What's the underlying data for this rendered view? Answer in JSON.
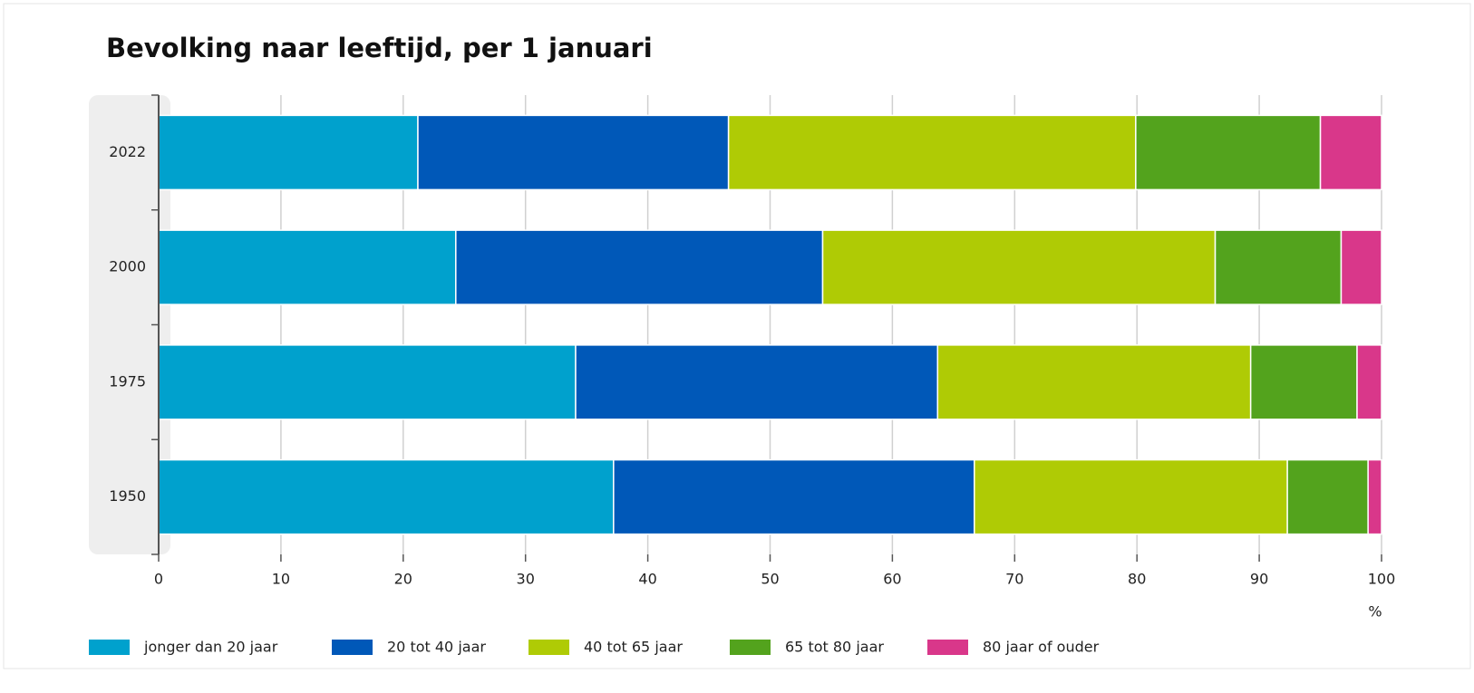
{
  "chart_data": {
    "type": "stacked_barh",
    "title": "Bevolking naar leeftijd, per 1 januari",
    "categories": [
      "2022",
      "2000",
      "1975",
      "1950"
    ],
    "series": [
      {
        "name": "jonger dan 20 jaar",
        "color": "#00a1cd",
        "values": [
          21.2,
          24.3,
          34.1,
          37.2
        ]
      },
      {
        "name": "20 tot 40 jaar",
        "color": "#0058b8",
        "values": [
          25.4,
          30.0,
          29.6,
          29.5
        ]
      },
      {
        "name": "40 tot 65 jaar",
        "color": "#afcb05",
        "values": [
          33.3,
          32.1,
          25.6,
          25.6
        ]
      },
      {
        "name": "65 tot 80 jaar",
        "color": "#53a31d",
        "values": [
          15.1,
          10.3,
          8.7,
          6.6
        ]
      },
      {
        "name": "80 jaar of ouder",
        "color": "#d9378a",
        "values": [
          5.0,
          3.3,
          2.0,
          1.1
        ]
      }
    ],
    "xlabel": "%",
    "xlim": [
      0,
      100
    ],
    "xticks": [
      0,
      10,
      20,
      30,
      40,
      50,
      60,
      70,
      80,
      90,
      100
    ],
    "grid": true
  }
}
